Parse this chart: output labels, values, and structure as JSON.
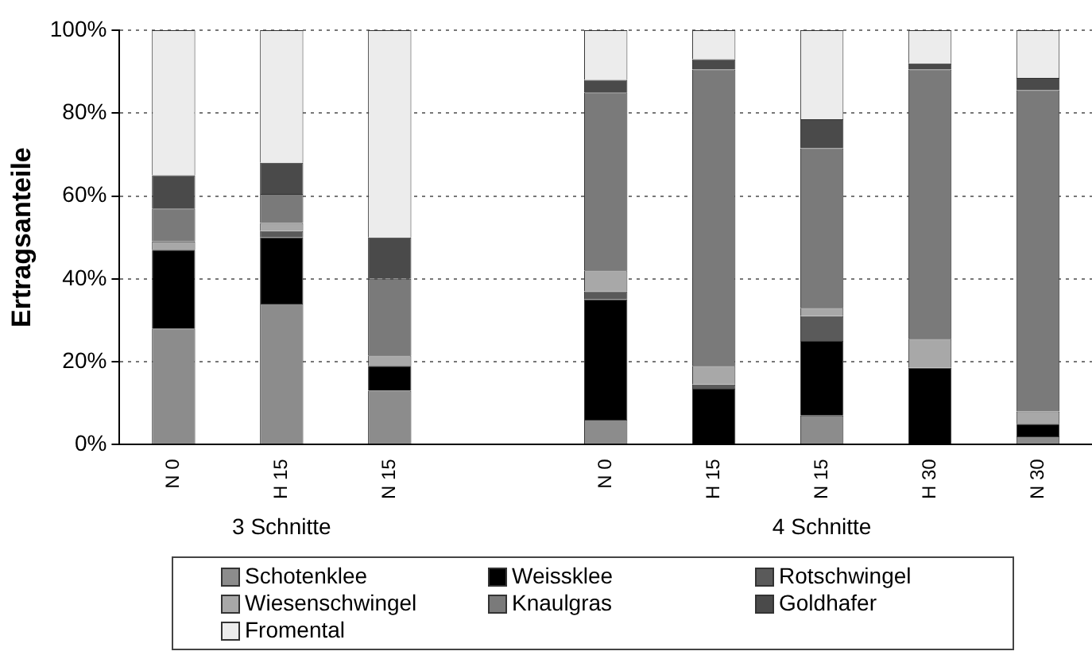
{
  "chart_data": {
    "type": "bar",
    "stacked": true,
    "ylabel": "Ertragsanteile",
    "categories": [
      "N 0",
      "H 15",
      "N 15",
      null,
      "N 0",
      "H 15",
      "N 15",
      "H 30",
      "N 30"
    ],
    "series": [
      {
        "name": "Schotenklee",
        "color": "#8c8c8c",
        "values": [
          28,
          34,
          13,
          null,
          6,
          0,
          7,
          0,
          2
        ]
      },
      {
        "name": "Weissklee",
        "color": "#000000",
        "values": [
          19,
          16,
          6,
          null,
          29,
          13.5,
          18,
          18.5,
          3
        ]
      },
      {
        "name": "Rotschwingel",
        "color": "#5a5a5a",
        "values": [
          0,
          1.5,
          0,
          null,
          2,
          1,
          6,
          0,
          0
        ]
      },
      {
        "name": "Wiesenschwingel",
        "color": "#a8a8a8",
        "values": [
          2,
          2,
          2.5,
          null,
          5,
          4.5,
          2,
          7,
          3
        ]
      },
      {
        "name": "Knaulgras",
        "color": "#7a7a7a",
        "values": [
          8,
          7,
          18.5,
          null,
          43,
          71.5,
          38.5,
          65,
          77.5
        ]
      },
      {
        "name": "Goldhafer",
        "color": "#4a4a4a",
        "values": [
          8,
          7.5,
          10,
          null,
          3,
          2.5,
          7,
          1.5,
          3
        ]
      },
      {
        "name": "Fromental",
        "color": "#ececec",
        "values": [
          35,
          32,
          50,
          null,
          12,
          7,
          21.5,
          8,
          11.5
        ]
      }
    ],
    "ylim": [
      0,
      100
    ],
    "yticks": [
      {
        "value": 0,
        "label": "0%"
      },
      {
        "value": 20,
        "label": "20%"
      },
      {
        "value": 40,
        "label": "40%"
      },
      {
        "value": 60,
        "label": "60%"
      },
      {
        "value": 80,
        "label": "80%"
      },
      {
        "value": 100,
        "label": "100%"
      }
    ],
    "grid": "y",
    "legend": "bottom",
    "annotations": [
      "3 Schnitte",
      "4 Schnitte"
    ]
  }
}
